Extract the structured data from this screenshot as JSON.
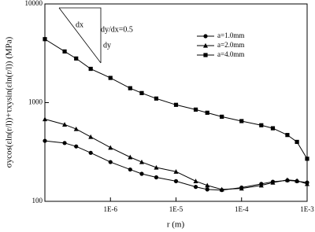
{
  "chart_data": {
    "type": "line",
    "xlabel": "r (m)",
    "ylabel": "σycos(εln(r/l))+τxysin(εln(r/l)) (MPa)",
    "xscale": "log",
    "yscale": "log",
    "xlim": [
      1e-07,
      0.001
    ],
    "ylim": [
      100,
      10000
    ],
    "xticks": [
      {
        "value": 1e-06,
        "label": "1E-6"
      },
      {
        "value": 1e-05,
        "label": "1E-5"
      },
      {
        "value": 0.0001,
        "label": "1E-4"
      },
      {
        "value": 0.001,
        "label": "1E-3"
      }
    ],
    "yticks": [
      100,
      1000,
      10000
    ],
    "x": [
      1e-07,
      2e-07,
      3e-07,
      5e-07,
      1e-06,
      2e-06,
      3e-06,
      5e-06,
      1e-05,
      2e-05,
      3e-05,
      5e-05,
      0.0001,
      0.0002,
      0.0003,
      0.0005,
      0.0007,
      0.001
    ],
    "series": [
      {
        "name": "a=1.0mm",
        "marker": "circle",
        "color": "#000000",
        "values": [
          410,
          390,
          360,
          310,
          250,
          210,
          190,
          175,
          160,
          140,
          132,
          130,
          138,
          150,
          158,
          163,
          160,
          155
        ]
      },
      {
        "name": "a=2.0mm",
        "marker": "triangle",
        "color": "#000000",
        "values": [
          680,
          600,
          540,
          450,
          350,
          280,
          250,
          220,
          200,
          160,
          145,
          132,
          135,
          145,
          155,
          165,
          162,
          150
        ]
      },
      {
        "name": "a=4.0mm",
        "marker": "square",
        "color": "#000000",
        "values": [
          4400,
          3300,
          2800,
          2200,
          1780,
          1400,
          1250,
          1100,
          950,
          850,
          790,
          720,
          650,
          590,
          550,
          470,
          400,
          270
        ]
      }
    ],
    "annotations": [
      "dx",
      "dy/dx=0.5",
      "dy"
    ]
  }
}
